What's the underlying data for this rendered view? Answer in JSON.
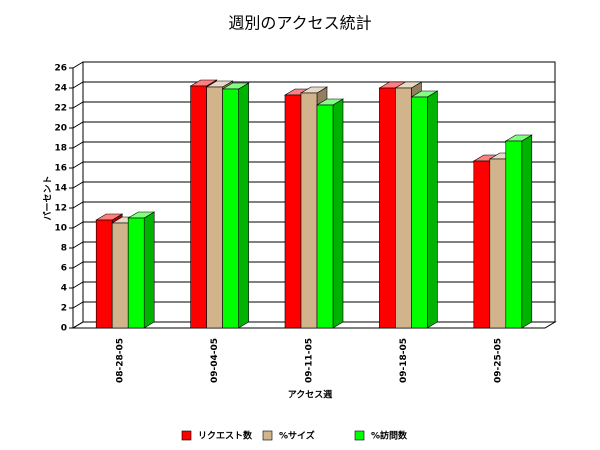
{
  "chart_data": {
    "type": "bar3d",
    "title": "週別のアクセス統計",
    "y_label": "パーセント",
    "x_label": "アクセス週",
    "categories": [
      "08-28-05",
      "09-04-05",
      "09-11-05",
      "09-18-05",
      "09-25-05"
    ],
    "series": [
      {
        "name": "リクエスト数",
        "color": "#ff0000",
        "values": [
          10.8,
          24.2,
          23.3,
          24.0,
          16.7
        ]
      },
      {
        "name": "%サイズ",
        "color": "#d2b48c",
        "values": [
          10.5,
          24.1,
          23.5,
          24.0,
          16.9
        ]
      },
      {
        "name": "%訪問数",
        "color": "#00ff00",
        "values": [
          11.0,
          23.9,
          22.3,
          23.1,
          18.7
        ]
      }
    ],
    "ylim": [
      0,
      26
    ],
    "yticks": [
      0,
      2,
      4,
      6,
      8,
      10,
      12,
      14,
      16,
      18,
      20,
      22,
      24,
      26
    ],
    "grid": true
  }
}
